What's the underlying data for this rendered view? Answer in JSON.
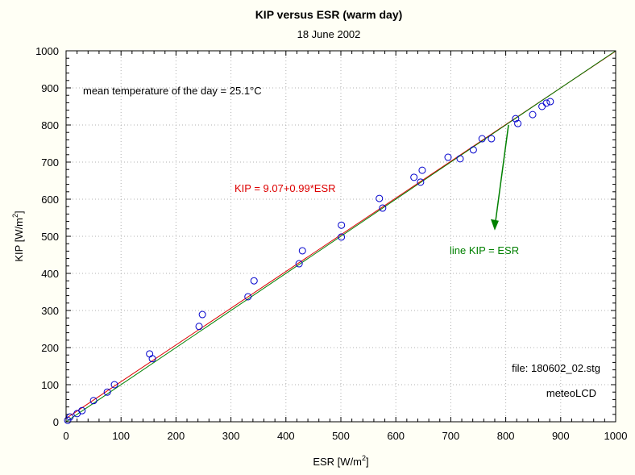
{
  "chart_data": {
    "type": "scatter",
    "title": "KIP versus ESR (warm day)",
    "subtitle": "18 June 2002",
    "xlabel": "ESR [W/m",
    "xlabel_sup": "2",
    "xlabel_end": "]",
    "ylabel": "KIP [W/m",
    "ylabel_sup": "2",
    "ylabel_end": "]",
    "xlim": [
      0,
      1000
    ],
    "ylim": [
      0,
      1000
    ],
    "x_ticks": [
      "0",
      "100",
      "200",
      "300",
      "400",
      "500",
      "600",
      "700",
      "800",
      "900",
      "1000"
    ],
    "y_ticks": [
      "0",
      "100",
      "200",
      "300",
      "400",
      "500",
      "600",
      "700",
      "800",
      "900",
      "1000"
    ],
    "x_tick_values": [
      0,
      100,
      200,
      300,
      400,
      500,
      600,
      700,
      800,
      900,
      1000
    ],
    "y_tick_values": [
      0,
      100,
      200,
      300,
      400,
      500,
      600,
      700,
      800,
      900,
      1000
    ],
    "grid": true,
    "series": [
      {
        "name": "measurements",
        "color": "#0000cc",
        "x": [
          3,
          7,
          20,
          29,
          50,
          75,
          88,
          152,
          157,
          242,
          248,
          331,
          342,
          424,
          430,
          501,
          501,
          570,
          576,
          633,
          645,
          648,
          695,
          717,
          741,
          757,
          774,
          818,
          822,
          849,
          866,
          874,
          881
        ],
        "y": [
          4,
          13,
          22,
          30,
          57,
          80,
          100,
          183,
          170,
          257,
          289,
          337,
          380,
          426,
          461,
          498,
          530,
          602,
          576,
          659,
          646,
          678,
          713,
          709,
          733,
          763,
          763,
          817,
          804,
          828,
          850,
          859,
          863
        ]
      }
    ],
    "lines": [
      {
        "name": "regression",
        "label": "KIP = 9.07+0.99*ESR",
        "intercept": 9.07,
        "slope": 0.99,
        "color": "#dd0000"
      },
      {
        "name": "identity",
        "label": "line KIP = ESR",
        "intercept": 0,
        "slope": 1,
        "color": "#008000"
      }
    ],
    "annotations": {
      "mean_temp": "mean temperature of the day = 25.1°C",
      "file": "file: 180602_02.stg",
      "source": "meteoLCD",
      "arrow_from": [
        805,
        800
      ],
      "arrow_to": [
        780,
        520
      ]
    }
  }
}
